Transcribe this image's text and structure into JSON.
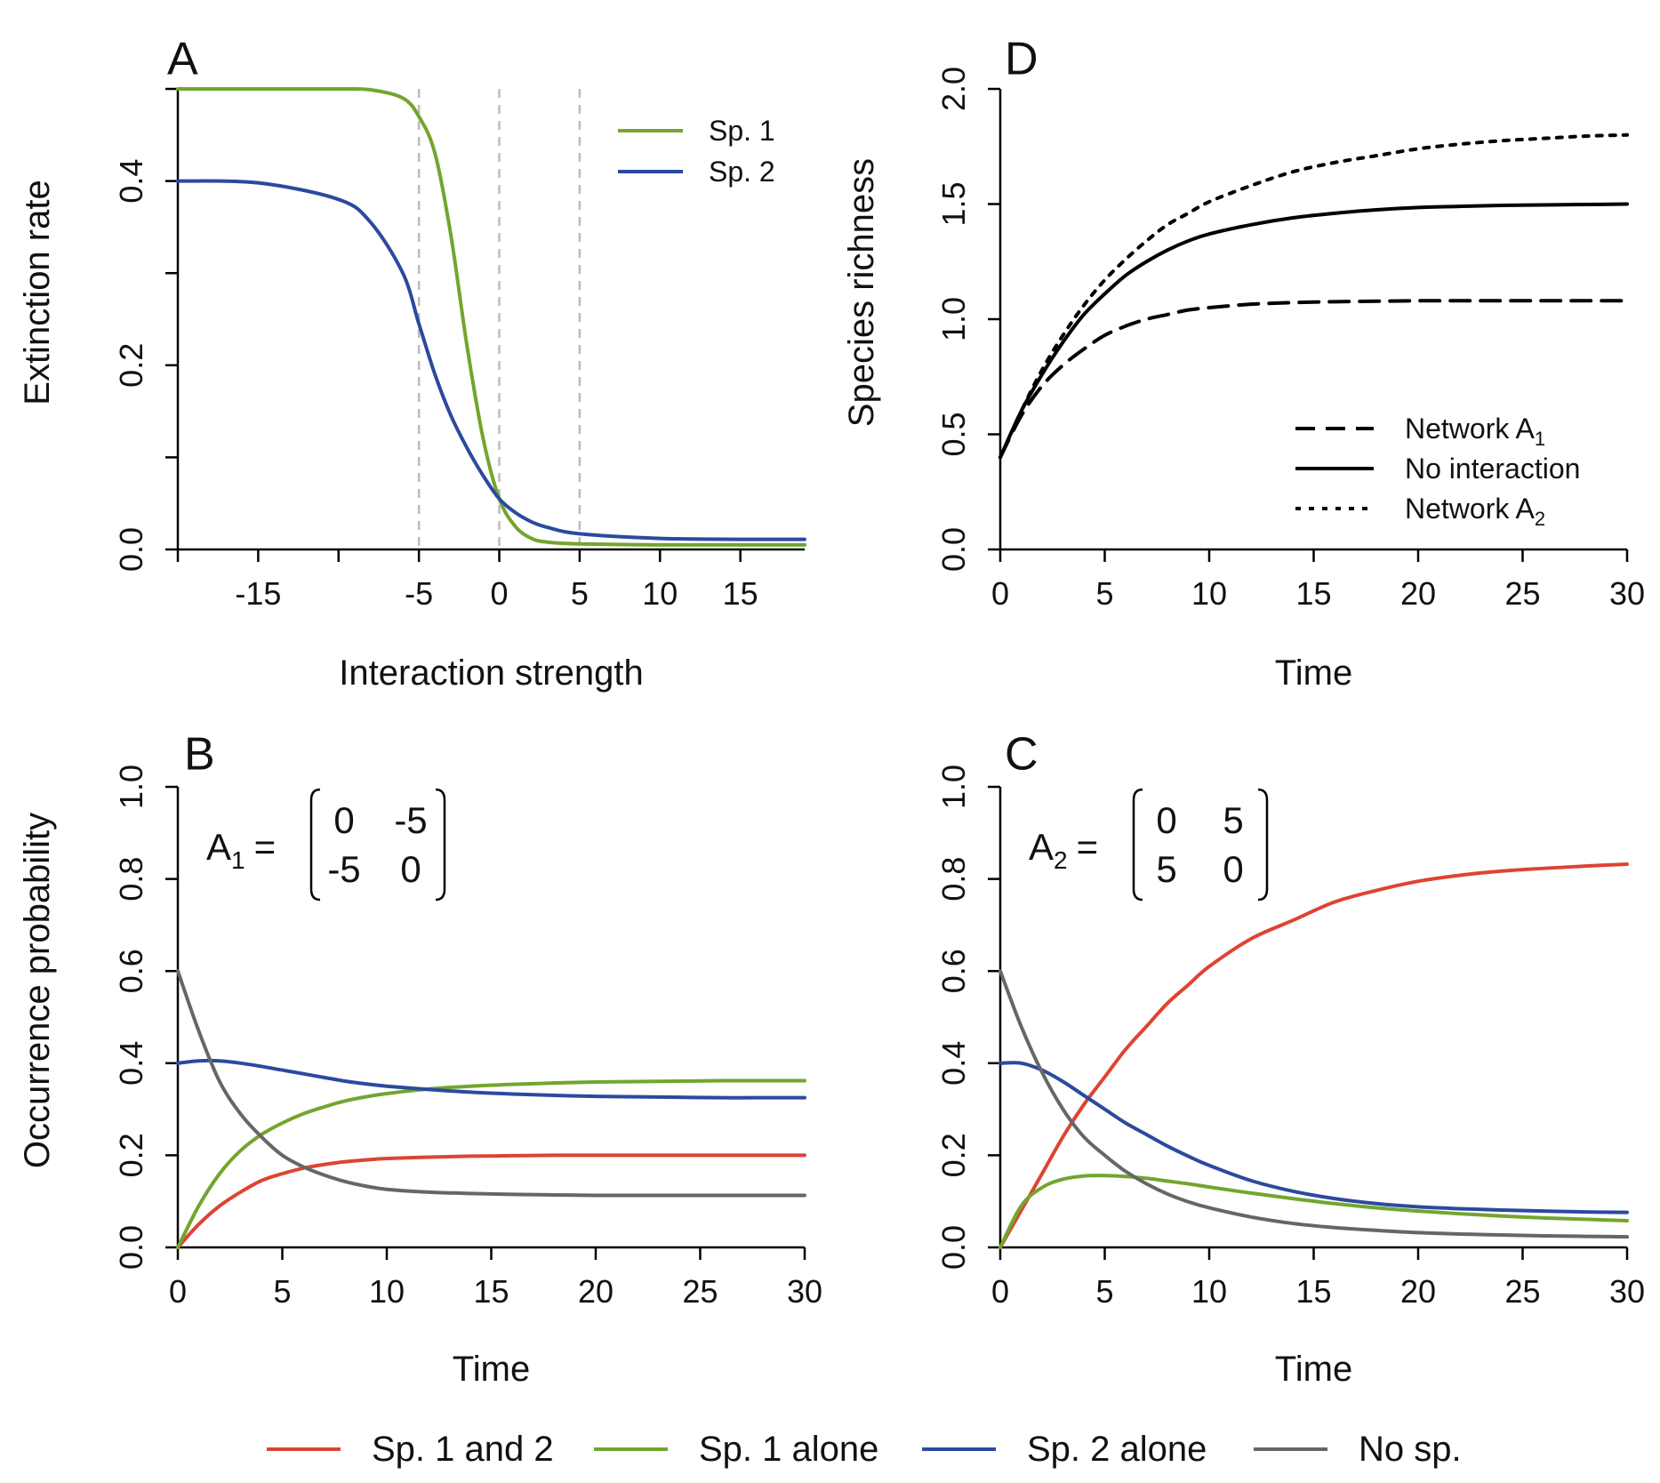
{
  "colors": {
    "sp1_and_2": "#dd4433",
    "sp1_alone": "#73a52e",
    "sp2_alone": "#2b4a9e",
    "no_sp": "#666666",
    "black": "#000000",
    "vline": "#bbbbbb"
  },
  "legend_bottom": [
    {
      "label": "Sp. 1 and 2",
      "color_key": "sp1_and_2"
    },
    {
      "label": "Sp. 1 alone",
      "color_key": "sp1_alone"
    },
    {
      "label": "Sp. 2 alone",
      "color_key": "sp2_alone"
    },
    {
      "label": "No sp.",
      "color_key": "no_sp"
    }
  ],
  "chart_data": [
    {
      "panel": "A",
      "type": "line",
      "xlabel": "Interaction strength",
      "ylabel": "Extinction rate",
      "xlim": [
        -20,
        19
      ],
      "ylim": [
        0,
        0.5
      ],
      "xticks": [
        -20,
        -15,
        -10,
        -5,
        0,
        5,
        10,
        15
      ],
      "xtick_labels": [
        "",
        "-15",
        "",
        "-5",
        "0",
        "5",
        "10",
        "15"
      ],
      "yticks": [
        0,
        0.1,
        0.2,
        0.3,
        0.4,
        0.5
      ],
      "ytick_labels": [
        "0.0",
        "",
        "0.2",
        "",
        "0.4",
        ""
      ],
      "vlines": [
        -5,
        0,
        5
      ],
      "legend": {
        "position": "top-right"
      },
      "x": [
        -20,
        -15,
        -10,
        -8,
        -6,
        -5,
        -4,
        -3,
        -2,
        -1,
        0,
        1,
        2,
        3,
        5,
        10,
        15,
        19
      ],
      "series": [
        {
          "name": "Sp. 1",
          "color_key": "sp1_alone",
          "values": [
            0.5,
            0.5,
            0.5,
            0.499,
            0.49,
            0.47,
            0.43,
            0.34,
            0.22,
            0.12,
            0.055,
            0.025,
            0.012,
            0.008,
            0.006,
            0.005,
            0.005,
            0.005
          ]
        },
        {
          "name": "Sp. 2",
          "color_key": "sp2_alone",
          "values": [
            0.4,
            0.398,
            0.38,
            0.355,
            0.3,
            0.245,
            0.19,
            0.145,
            0.11,
            0.08,
            0.055,
            0.04,
            0.03,
            0.024,
            0.017,
            0.012,
            0.011,
            0.011
          ]
        }
      ]
    },
    {
      "panel": "D",
      "type": "line",
      "xlabel": "Time",
      "ylabel": "Species richness",
      "xlim": [
        0,
        30
      ],
      "ylim": [
        0,
        2
      ],
      "xticks": [
        0,
        5,
        10,
        15,
        20,
        25,
        30
      ],
      "xtick_labels": [
        "0",
        "5",
        "10",
        "15",
        "20",
        "25",
        "30"
      ],
      "yticks": [
        0,
        0.5,
        1,
        1.5,
        2
      ],
      "ytick_labels": [
        "0.0",
        "0.5",
        "1.0",
        "1.5",
        "2.0"
      ],
      "legend": {
        "position": "bottom-right"
      },
      "x": [
        0,
        1,
        2,
        3,
        4,
        5,
        6,
        7,
        8,
        9,
        10,
        12,
        14,
        16,
        18,
        20,
        22,
        24,
        26,
        28,
        30
      ],
      "series": [
        {
          "name": "Network A",
          "subscript": "1",
          "dash": "dashed",
          "values": [
            0.4,
            0.58,
            0.71,
            0.8,
            0.87,
            0.93,
            0.97,
            1.0,
            1.02,
            1.04,
            1.05,
            1.065,
            1.072,
            1.076,
            1.078,
            1.08,
            1.08,
            1.08,
            1.08,
            1.08,
            1.08
          ]
        },
        {
          "name": "No interaction",
          "subscript": "",
          "dash": "solid",
          "values": [
            0.4,
            0.6,
            0.76,
            0.9,
            1.02,
            1.11,
            1.19,
            1.25,
            1.3,
            1.34,
            1.37,
            1.41,
            1.44,
            1.46,
            1.475,
            1.485,
            1.49,
            1.494,
            1.496,
            1.498,
            1.5
          ]
        },
        {
          "name": "Network A",
          "subscript": "2",
          "dash": "dotted",
          "values": [
            0.4,
            0.6,
            0.78,
            0.93,
            1.06,
            1.17,
            1.26,
            1.34,
            1.41,
            1.46,
            1.51,
            1.58,
            1.64,
            1.68,
            1.71,
            1.74,
            1.76,
            1.775,
            1.785,
            1.795,
            1.8
          ]
        }
      ]
    },
    {
      "panel": "B",
      "type": "line",
      "xlabel": "Time",
      "ylabel": "Occurrence probability",
      "xlim": [
        0,
        30
      ],
      "ylim": [
        0,
        1
      ],
      "xticks": [
        0,
        5,
        10,
        15,
        20,
        25,
        30
      ],
      "xtick_labels": [
        "0",
        "5",
        "10",
        "15",
        "20",
        "25",
        "30"
      ],
      "yticks": [
        0,
        0.2,
        0.4,
        0.6,
        0.8,
        1
      ],
      "ytick_labels": [
        "0.0",
        "0.2",
        "0.4",
        "0.6",
        "0.8",
        "1.0"
      ],
      "matrix": {
        "lhs": "A",
        "sub": "1",
        "row1": [
          "0",
          "-5"
        ],
        "row2": [
          "-5",
          "0"
        ]
      },
      "x": [
        0,
        1,
        2,
        3,
        4,
        5,
        6,
        7,
        8,
        9,
        10,
        12,
        14,
        16,
        18,
        20,
        22,
        24,
        26,
        28,
        30
      ],
      "series": [
        {
          "name": "Sp. 1 and 2",
          "color_key": "sp1_and_2",
          "values": [
            0,
            0.05,
            0.09,
            0.12,
            0.145,
            0.16,
            0.172,
            0.18,
            0.186,
            0.19,
            0.193,
            0.196,
            0.198,
            0.199,
            0.2,
            0.2,
            0.2,
            0.2,
            0.2,
            0.2,
            0.2
          ]
        },
        {
          "name": "Sp. 1 alone",
          "color_key": "sp1_alone",
          "values": [
            0,
            0.09,
            0.16,
            0.21,
            0.245,
            0.27,
            0.29,
            0.305,
            0.318,
            0.327,
            0.334,
            0.344,
            0.35,
            0.354,
            0.357,
            0.359,
            0.36,
            0.361,
            0.362,
            0.362,
            0.362
          ]
        },
        {
          "name": "Sp. 2 alone",
          "color_key": "sp2_alone",
          "values": [
            0.4,
            0.405,
            0.405,
            0.4,
            0.393,
            0.385,
            0.377,
            0.369,
            0.361,
            0.355,
            0.35,
            0.343,
            0.337,
            0.333,
            0.33,
            0.328,
            0.327,
            0.326,
            0.325,
            0.325,
            0.325
          ]
        },
        {
          "name": "No sp.",
          "color_key": "no_sp",
          "values": [
            0.6,
            0.47,
            0.36,
            0.29,
            0.24,
            0.2,
            0.175,
            0.157,
            0.143,
            0.133,
            0.126,
            0.12,
            0.117,
            0.115,
            0.114,
            0.113,
            0.113,
            0.113,
            0.113,
            0.113,
            0.113
          ]
        }
      ]
    },
    {
      "panel": "C",
      "type": "line",
      "xlabel": "Time",
      "ylabel": "",
      "xlim": [
        0,
        30
      ],
      "ylim": [
        0,
        1
      ],
      "xticks": [
        0,
        5,
        10,
        15,
        20,
        25,
        30
      ],
      "xtick_labels": [
        "0",
        "5",
        "10",
        "15",
        "20",
        "25",
        "30"
      ],
      "yticks": [
        0,
        0.2,
        0.4,
        0.6,
        0.8,
        1
      ],
      "ytick_labels": [
        "0.0",
        "0.2",
        "0.4",
        "0.6",
        "0.8",
        "1.0"
      ],
      "matrix": {
        "lhs": "A",
        "sub": "2",
        "row1": [
          "0",
          "5"
        ],
        "row2": [
          "5",
          "0"
        ]
      },
      "x": [
        0,
        1,
        2,
        3,
        4,
        5,
        6,
        7,
        8,
        9,
        10,
        12,
        14,
        16,
        18,
        20,
        22,
        24,
        26,
        28,
        30
      ],
      "series": [
        {
          "name": "Sp. 1 and 2",
          "color_key": "sp1_and_2",
          "values": [
            0,
            0.08,
            0.16,
            0.24,
            0.31,
            0.37,
            0.43,
            0.48,
            0.53,
            0.57,
            0.61,
            0.67,
            0.71,
            0.75,
            0.775,
            0.795,
            0.808,
            0.817,
            0.823,
            0.828,
            0.832
          ]
        },
        {
          "name": "Sp. 1 alone",
          "color_key": "sp1_alone",
          "values": [
            0,
            0.09,
            0.13,
            0.148,
            0.155,
            0.156,
            0.154,
            0.15,
            0.144,
            0.138,
            0.131,
            0.118,
            0.106,
            0.095,
            0.086,
            0.079,
            0.073,
            0.068,
            0.064,
            0.061,
            0.058
          ]
        },
        {
          "name": "Sp. 2 alone",
          "color_key": "sp2_alone",
          "values": [
            0.4,
            0.4,
            0.385,
            0.36,
            0.33,
            0.3,
            0.27,
            0.245,
            0.22,
            0.198,
            0.178,
            0.145,
            0.122,
            0.106,
            0.095,
            0.088,
            0.084,
            0.081,
            0.079,
            0.077,
            0.076
          ]
        },
        {
          "name": "No sp.",
          "color_key": "no_sp",
          "values": [
            0.6,
            0.48,
            0.38,
            0.3,
            0.24,
            0.2,
            0.165,
            0.138,
            0.116,
            0.099,
            0.086,
            0.066,
            0.052,
            0.043,
            0.037,
            0.032,
            0.029,
            0.027,
            0.025,
            0.024,
            0.023
          ]
        }
      ]
    }
  ]
}
